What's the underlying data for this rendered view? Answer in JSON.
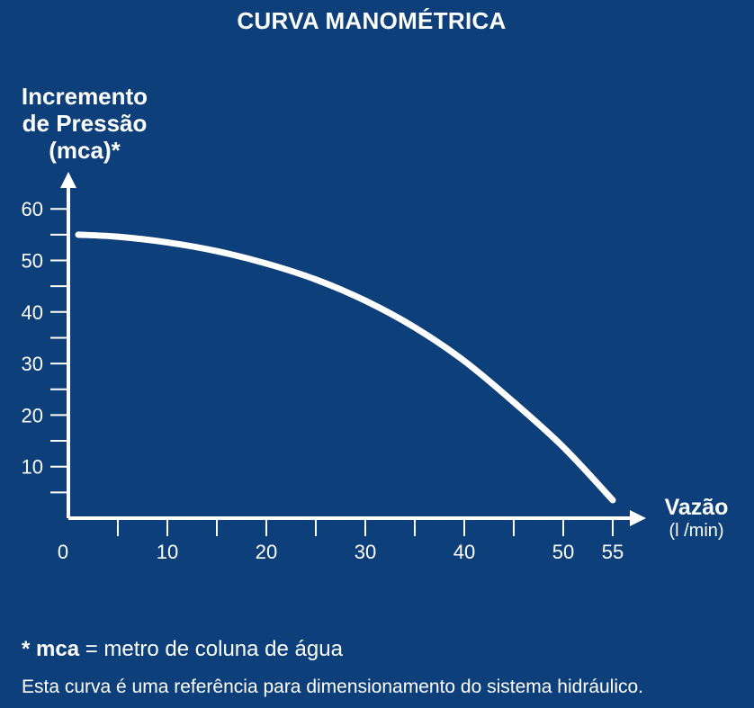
{
  "chart_data": {
    "type": "line",
    "title": "CURVA MANOMÉTRICA",
    "ylabel_lines": [
      "Incremento",
      "de Pressão",
      "(mca)*"
    ],
    "xlabel": "Vazão",
    "xunit": "(l /min)",
    "xlim": [
      0,
      55
    ],
    "ylim": [
      0,
      60
    ],
    "x_ticks": [
      0,
      10,
      20,
      30,
      40,
      50,
      55
    ],
    "y_ticks": [
      10,
      20,
      30,
      40,
      50,
      60
    ],
    "grid": false,
    "series": [
      {
        "x": [
          1,
          5,
          10,
          15,
          20,
          25,
          30,
          35,
          40,
          45,
          50,
          55
        ],
        "y": [
          55,
          54.6,
          53.5,
          51.8,
          49.4,
          46.3,
          42.2,
          37.0,
          30.5,
          22.5,
          13.8,
          3.5
        ]
      }
    ],
    "color": "#ffffff"
  },
  "footnote": {
    "symbol_term": "* mca",
    "definition": " = metro de coluna de água"
  },
  "note": "Esta curva é uma referência para dimensionamento do sistema hidráulico.",
  "colors": {
    "background": "#0d3f7a",
    "foreground": "#ffffff"
  }
}
